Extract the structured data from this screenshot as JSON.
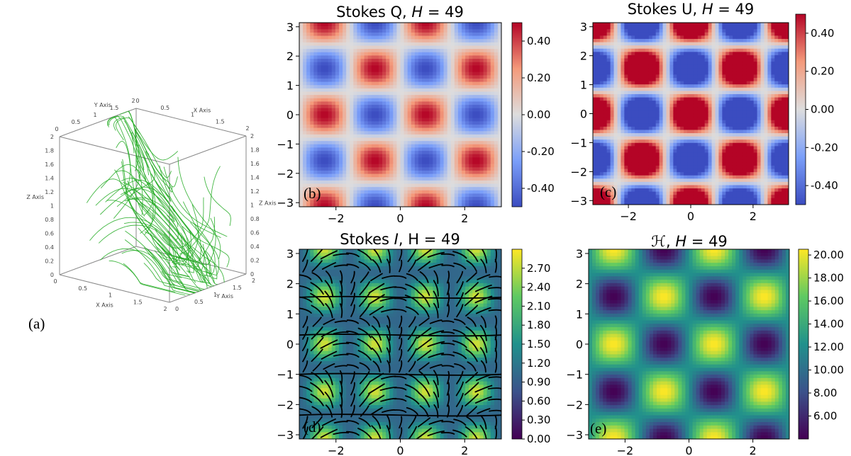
{
  "figure_caption": "",
  "panel_labels": {
    "a": "(a)",
    "b": "(b)",
    "c": "(c)",
    "d": "(d)",
    "e": "(e)"
  },
  "chart_data": [
    {
      "id": "a",
      "type": "3d-streamlines",
      "title": "",
      "axis_labels": {
        "x": "X Axis",
        "y": "Y Axis",
        "z": "Z Axis"
      },
      "axis_range": [
        0,
        2
      ],
      "tick_labels": [
        "0",
        "0.5",
        "1",
        "1.5",
        "2"
      ],
      "z_tick_labels": [
        "0",
        "0.2",
        "0.4",
        "0.6",
        "0.8",
        "1",
        "1.2",
        "1.4",
        "1.6",
        "1.8",
        "2"
      ],
      "line_color": "#22aa22"
    },
    {
      "id": "b",
      "type": "heatmap",
      "title": "Stokes Q, ",
      "title_var": "H",
      "title_eq": " = 49",
      "xlim": [
        -3.14,
        3.14
      ],
      "ylim": [
        -3.14,
        3.14
      ],
      "xticks": [
        -2,
        0,
        2
      ],
      "xtick_labels": [
        "−2",
        "0",
        "2"
      ],
      "yticks": [
        -3,
        -2,
        -1,
        0,
        1,
        2,
        3
      ],
      "ytick_labels": [
        "−3",
        "−2",
        "−1",
        "0",
        "1",
        "2",
        "3"
      ],
      "colormap": "coolwarm",
      "vmin": -0.5,
      "vmax": 0.5,
      "colorbar_ticks": [
        0.4,
        0.2,
        0.0,
        -0.2,
        -0.4
      ],
      "colorbar_labels": [
        "0.40",
        "0.20",
        "0.00",
        "-0.20",
        "-0.40"
      ]
    },
    {
      "id": "c",
      "type": "heatmap",
      "title": "Stokes U, ",
      "title_var": "H",
      "title_eq": " = 49",
      "xlim": [
        -3.14,
        3.14
      ],
      "ylim": [
        -3.14,
        3.14
      ],
      "xticks": [
        -2,
        0,
        2
      ],
      "xtick_labels": [
        "−2",
        "0",
        "2"
      ],
      "yticks": [
        -3,
        -2,
        -1,
        0,
        1,
        2,
        3
      ],
      "ytick_labels": [
        "−3",
        "−2",
        "−1",
        "0",
        "1",
        "2",
        "3"
      ],
      "colormap": "coolwarm",
      "vmin": -0.5,
      "vmax": 0.5,
      "colorbar_ticks": [
        0.4,
        0.2,
        0.0,
        -0.2,
        -0.4
      ],
      "colorbar_labels": [
        "0.40",
        "0.20",
        "0.00",
        "-0.20",
        "-0.40"
      ]
    },
    {
      "id": "d",
      "type": "heatmap",
      "title": "Stokes ",
      "title_var": "I",
      "title_eq": ", H = 49",
      "xlim": [
        -3.14,
        3.14
      ],
      "ylim": [
        -3.14,
        3.14
      ],
      "xticks": [
        -2,
        0,
        2
      ],
      "xtick_labels": [
        "−2",
        "0",
        "2"
      ],
      "yticks": [
        -3,
        -2,
        -1,
        0,
        1,
        2,
        3
      ],
      "ytick_labels": [
        "−3",
        "−2",
        "−1",
        "0",
        "1",
        "2",
        "3"
      ],
      "colormap": "viridis",
      "vmin": 0.0,
      "vmax": 3.0,
      "colorbar_ticks": [
        2.7,
        2.4,
        2.1,
        1.8,
        1.5,
        1.2,
        0.9,
        0.6,
        0.3,
        0.0
      ],
      "colorbar_labels": [
        "2.70",
        "2.40",
        "2.10",
        "1.80",
        "1.50",
        "1.20",
        "0.90",
        "0.60",
        "0.30",
        "0.00"
      ],
      "overlay": "polarization orientation line segments (black)"
    },
    {
      "id": "e",
      "type": "heatmap",
      "title": ", ",
      "title_var": "ℋ",
      "title_eq": "H = 49",
      "xlim": [
        -3.14,
        3.14
      ],
      "ylim": [
        -3.14,
        3.14
      ],
      "xticks": [
        -2,
        0,
        2
      ],
      "xtick_labels": [
        "−2",
        "0",
        "2"
      ],
      "yticks": [
        -3,
        -2,
        -1,
        0,
        1,
        2,
        3
      ],
      "ytick_labels": [
        "−3",
        "−2",
        "−1",
        "0",
        "1",
        "2",
        "3"
      ],
      "colormap": "viridis",
      "vmin": 4.0,
      "vmax": 20.5,
      "colorbar_ticks": [
        20,
        18,
        16,
        14,
        12,
        10,
        8,
        6
      ],
      "colorbar_labels": [
        "20.00",
        "18.00",
        "16.00",
        "14.00",
        "12.00",
        "10.00",
        "8.00",
        "6.00"
      ]
    }
  ]
}
